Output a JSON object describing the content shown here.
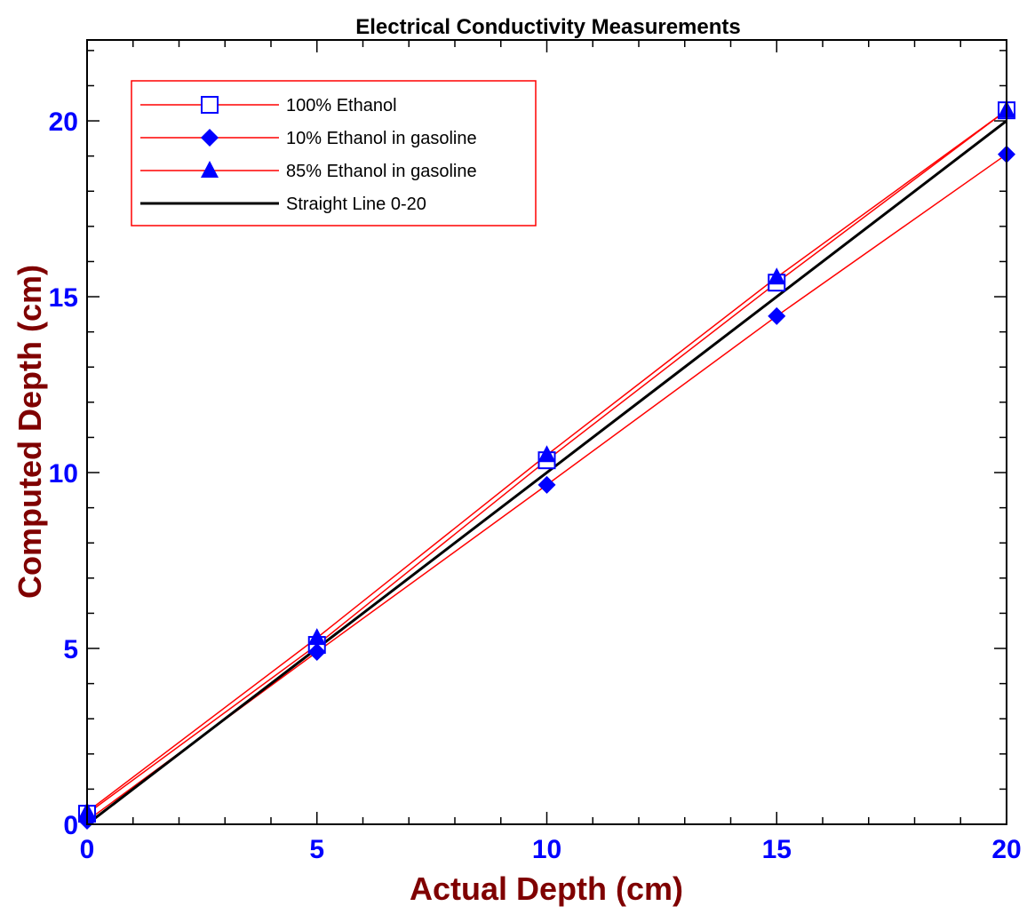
{
  "chart_data": {
    "type": "line",
    "title": "Electrical Conductivity Measurements",
    "xlabel": "Actual Depth (cm)",
    "ylabel": "Computed Depth (cm)",
    "xlim": [
      0,
      20
    ],
    "ylim": [
      0,
      22.3
    ],
    "x_ticks": [
      "0",
      "5",
      "10",
      "15",
      "20"
    ],
    "y_ticks": [
      "0",
      "5",
      "10",
      "15",
      "20"
    ],
    "grid": false,
    "legend_position": "top-left",
    "series": [
      {
        "name": "100% Ethanol",
        "marker": "open-square",
        "line_color": "#ff0000",
        "marker_color": "#0000ff",
        "x": [
          0,
          5,
          10,
          15,
          20
        ],
        "y": [
          0.3,
          5.1,
          10.35,
          15.4,
          20.3
        ]
      },
      {
        "name": "10% Ethanol in gasoline",
        "marker": "filled-diamond",
        "line_color": "#ff0000",
        "marker_color": "#0000ff",
        "x": [
          0,
          5,
          10,
          15,
          20
        ],
        "y": [
          0.1,
          4.9,
          9.65,
          14.45,
          19.05
        ]
      },
      {
        "name": "85% Ethanol in gasoline",
        "marker": "filled-triangle",
        "line_color": "#ff0000",
        "marker_color": "#0000ff",
        "x": [
          0,
          5,
          10,
          15,
          20
        ],
        "y": [
          0.35,
          5.3,
          10.5,
          15.55,
          20.3
        ]
      },
      {
        "name": "Straight Line 0-20",
        "marker": "none",
        "line_color": "#000000",
        "marker_color": "#000000",
        "x": [
          0,
          20
        ],
        "y": [
          0,
          20
        ]
      }
    ],
    "colors": {
      "tick_label": "#0000ff",
      "axis_label": "#7f0000",
      "legend_border": "#ff0000"
    }
  }
}
